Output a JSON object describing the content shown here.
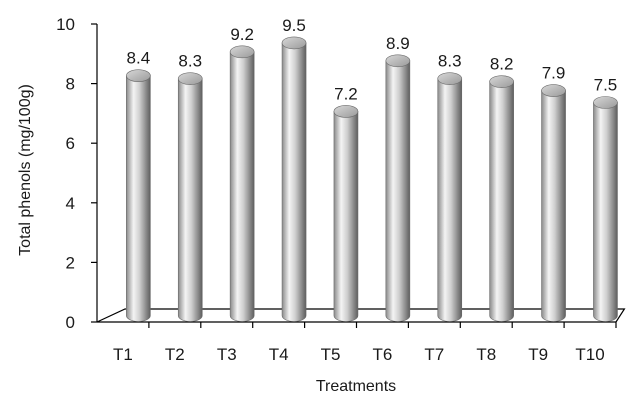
{
  "chart_data": {
    "type": "bar",
    "style": "3d-cylinder",
    "title": "",
    "xlabel": "Treatments",
    "ylabel": "Total phenols (mg/100g)",
    "categories": [
      "T1",
      "T2",
      "T3",
      "T4",
      "T5",
      "T6",
      "T7",
      "T8",
      "T9",
      "T10"
    ],
    "values": [
      8.4,
      8.3,
      9.2,
      9.5,
      7.2,
      8.9,
      8.3,
      8.2,
      7.9,
      7.5
    ],
    "data_labels": [
      "8.4",
      "8.3",
      "9.2",
      "9.5",
      "7.2",
      "8.9",
      "8.3",
      "8.2",
      "7.9",
      "7.5"
    ],
    "ylim": [
      0,
      10
    ],
    "yticks": [
      "0",
      "2",
      "4",
      "6",
      "8",
      "10"
    ],
    "grid": false,
    "legend": "none",
    "colors": {
      "bar_light": "#f2f2f2",
      "bar_mid": "#b3b3b3",
      "bar_dark": "#5a5a5a",
      "axis": "#000000"
    }
  }
}
